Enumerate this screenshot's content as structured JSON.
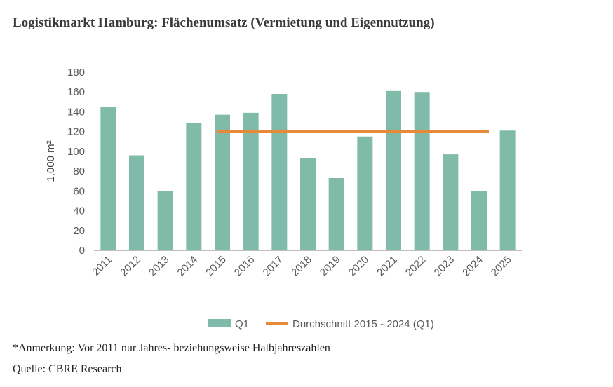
{
  "title": "Logistikmarkt Hamburg: Flächenumsatz (Vermietung und Eigennutzung)",
  "chart_data": {
    "type": "bar",
    "categories": [
      "2011",
      "2012",
      "2013",
      "2014",
      "2015",
      "2016",
      "2017",
      "2018",
      "2019",
      "2020",
      "2021",
      "2022",
      "2023",
      "2024",
      "2025"
    ],
    "series": [
      {
        "name": "Q1",
        "type": "bar",
        "color": "#80bba9",
        "values": [
          145,
          96,
          60,
          129,
          137,
          139,
          158,
          93,
          73,
          115,
          161,
          160,
          97,
          60,
          121
        ]
      }
    ],
    "average_line": {
      "name": "Durchschnitt 2015 - 2024 (Q1)",
      "value": 120,
      "from": "2015",
      "to": "2024",
      "color": "#e8893a"
    },
    "ylabel": "1,000 m²",
    "xlabel": "",
    "ylim": [
      0,
      180
    ],
    "yticks": [
      0,
      20,
      40,
      60,
      80,
      100,
      120,
      140,
      160,
      180
    ],
    "grid": false,
    "legend_position": "bottom"
  },
  "notes": {
    "annotation": "*Anmerkung: Vor 2011 nur Jahres- beziehungsweise Halbjahreszahlen",
    "source": "Quelle: CBRE Research"
  }
}
